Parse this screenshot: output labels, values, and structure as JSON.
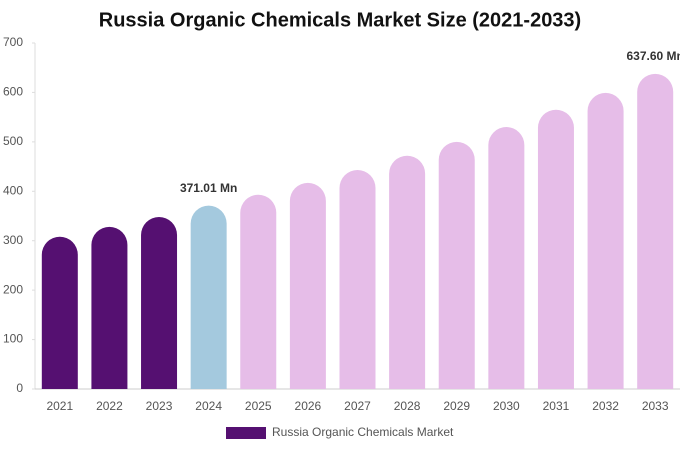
{
  "chart_data": {
    "type": "bar",
    "title": "Russia Organic Chemicals Market Size (2021-2033)",
    "categories": [
      "2021",
      "2022",
      "2023",
      "2024",
      "2025",
      "2026",
      "2027",
      "2028",
      "2029",
      "2030",
      "2031",
      "2032",
      "2033"
    ],
    "series": [
      {
        "name": "Russia Organic Chemicals Market",
        "color": "#551071",
        "values": [
          308,
          328,
          348,
          371.01,
          393,
          417,
          443,
          472,
          500,
          530,
          565,
          599,
          637.6
        ],
        "value_labels": [
          null,
          null,
          null,
          "371.01 Mn",
          null,
          null,
          null,
          null,
          null,
          null,
          null,
          null,
          "637.60 Mn"
        ],
        "colors": [
          "#551071",
          "#551071",
          "#551071",
          "#a4c9de",
          "#e6bde8",
          "#e6bde8",
          "#e6bde8",
          "#e6bde8",
          "#e6bde8",
          "#e6bde8",
          "#e6bde8",
          "#e6bde8",
          "#e6bde8"
        ]
      }
    ],
    "ylim": [
      0,
      700
    ],
    "yticks": [
      0,
      100,
      200,
      300,
      400,
      500,
      600,
      700
    ],
    "grid": false
  }
}
